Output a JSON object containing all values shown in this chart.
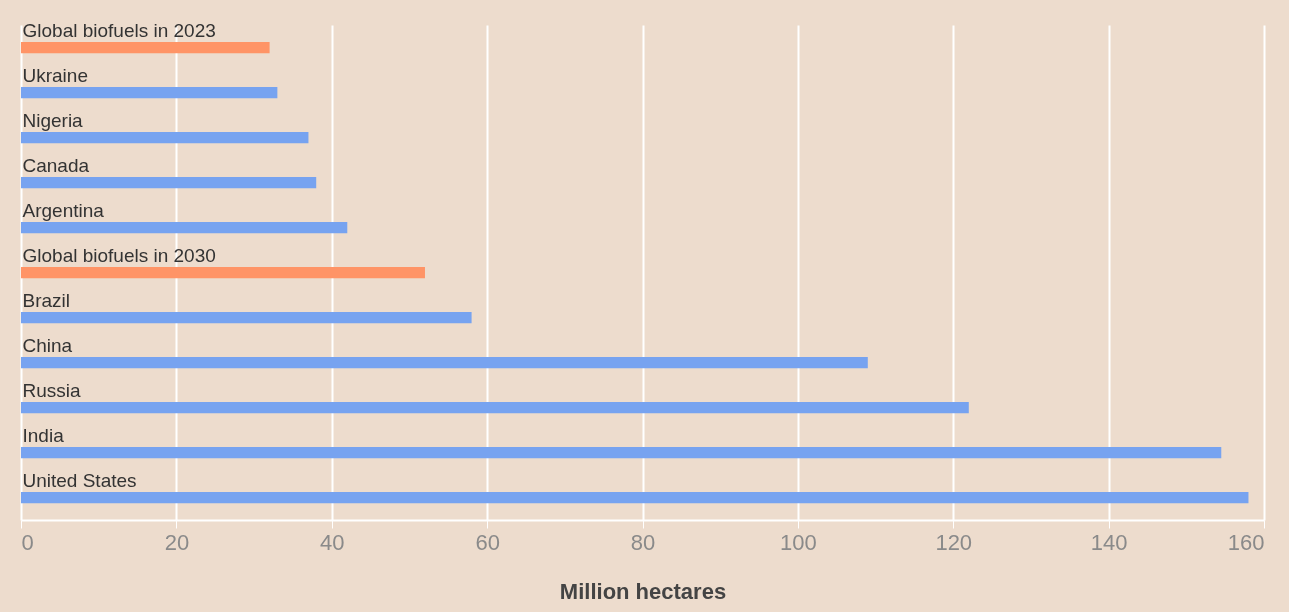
{
  "chart_data": {
    "type": "bar",
    "orientation": "horizontal",
    "xlabel": "Million hectares",
    "categories": [
      "Global biofuels in 2023",
      "Ukraine",
      "Nigeria",
      "Canada",
      "Argentina",
      "Global biofuels in 2030",
      "Brazil",
      "China",
      "Russia",
      "India",
      "United States"
    ],
    "values": [
      32,
      33,
      37,
      38,
      42,
      52,
      58,
      109,
      122,
      154.5,
      158
    ],
    "colors": [
      "#ff9466",
      "#77a3f0",
      "#77a3f0",
      "#77a3f0",
      "#77a3f0",
      "#ff9466",
      "#77a3f0",
      "#77a3f0",
      "#77a3f0",
      "#77a3f0",
      "#77a3f0"
    ],
    "xlim": [
      0,
      160
    ],
    "xticks": [
      0,
      20,
      40,
      60,
      80,
      100,
      120,
      140,
      160
    ],
    "grid": "x"
  }
}
